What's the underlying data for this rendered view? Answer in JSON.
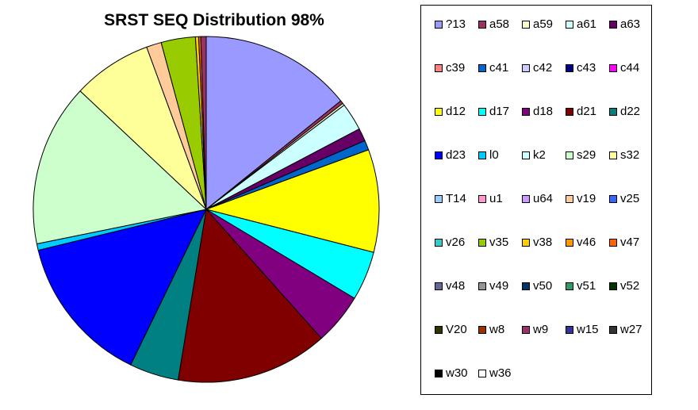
{
  "chart_data": {
    "type": "pie",
    "title": "SRST SEQ Distribution 98%",
    "legend_position": "right",
    "series": [
      {
        "name": "?13",
        "value": 14.2,
        "color": "#9999ff"
      },
      {
        "name": "a58",
        "value": 0.3,
        "color": "#993366"
      },
      {
        "name": "a59",
        "value": 0.2,
        "color": "#ffffcc"
      },
      {
        "name": "a61",
        "value": 2.6,
        "color": "#ccffff"
      },
      {
        "name": "a63",
        "value": 1.2,
        "color": "#660066"
      },
      {
        "name": "c39",
        "value": 0,
        "color": "#ff8080"
      },
      {
        "name": "c41",
        "value": 0.9,
        "color": "#0066cc"
      },
      {
        "name": "c42",
        "value": 0,
        "color": "#ccccff"
      },
      {
        "name": "c43",
        "value": 0,
        "color": "#000080"
      },
      {
        "name": "c44",
        "value": 0,
        "color": "#ff00ff"
      },
      {
        "name": "d12",
        "value": 9.6,
        "color": "#ffff00"
      },
      {
        "name": "d17",
        "value": 4.6,
        "color": "#00ffff"
      },
      {
        "name": "d18",
        "value": 4.8,
        "color": "#800080"
      },
      {
        "name": "d21",
        "value": 14.2,
        "color": "#800000"
      },
      {
        "name": "d22",
        "value": 4.6,
        "color": "#008080"
      },
      {
        "name": "d23",
        "value": 14.0,
        "color": "#0000ff"
      },
      {
        "name": "l0",
        "value": 0.6,
        "color": "#00ccff"
      },
      {
        "name": "k2",
        "value": 0,
        "color": "#ccffff"
      },
      {
        "name": "s29",
        "value": 15.2,
        "color": "#ccffcc"
      },
      {
        "name": "s32",
        "value": 7.4,
        "color": "#ffff99"
      },
      {
        "name": "T14",
        "value": 0,
        "color": "#99ccff"
      },
      {
        "name": "u1",
        "value": 0,
        "color": "#ff99cc"
      },
      {
        "name": "u64",
        "value": 0,
        "color": "#cc99ff"
      },
      {
        "name": "v19",
        "value": 1.4,
        "color": "#ffcc99"
      },
      {
        "name": "v25",
        "value": 0,
        "color": "#3366ff"
      },
      {
        "name": "v26",
        "value": 0,
        "color": "#33cccc"
      },
      {
        "name": "v35",
        "value": 3.2,
        "color": "#99cc00"
      },
      {
        "name": "v38",
        "value": 0.3,
        "color": "#ffcc00"
      },
      {
        "name": "v46",
        "value": 0,
        "color": "#ff9900"
      },
      {
        "name": "v47",
        "value": 0.2,
        "color": "#ff6600"
      },
      {
        "name": "v48",
        "value": 0,
        "color": "#666699"
      },
      {
        "name": "v49",
        "value": 0,
        "color": "#969696"
      },
      {
        "name": "v50",
        "value": 0,
        "color": "#003366"
      },
      {
        "name": "v51",
        "value": 0,
        "color": "#339966"
      },
      {
        "name": "v52",
        "value": 0,
        "color": "#003300"
      },
      {
        "name": "V20",
        "value": 0,
        "color": "#333300"
      },
      {
        "name": "w8",
        "value": 0,
        "color": "#993300"
      },
      {
        "name": "w9",
        "value": 0.5,
        "color": "#993366"
      },
      {
        "name": "w15",
        "value": 0,
        "color": "#333399"
      },
      {
        "name": "w27",
        "value": 0,
        "color": "#333333"
      },
      {
        "name": "w30",
        "value": 0,
        "color": "#000000"
      },
      {
        "name": "w36",
        "value": 0,
        "color": "#ffffff"
      }
    ]
  }
}
